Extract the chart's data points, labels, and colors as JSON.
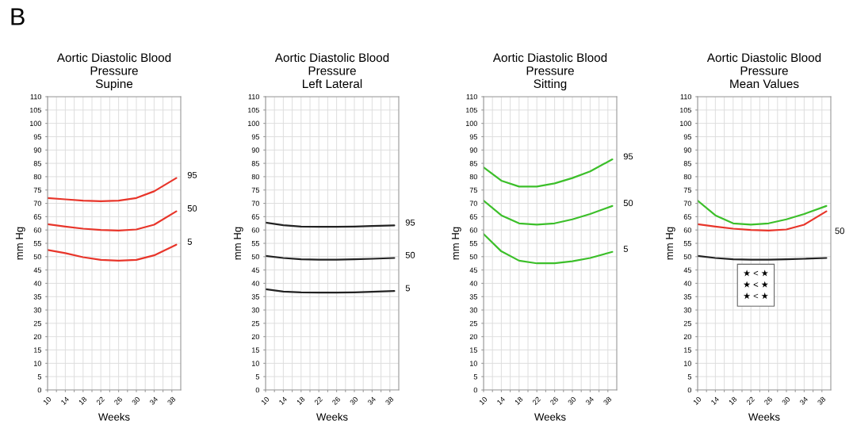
{
  "chart_data": [
    {
      "type": "line",
      "title": "Aortic Diastolic Blood\nPressure\nSupine",
      "xlabel": "Weeks",
      "ylabel": "mm Hg",
      "annotations": [
        "B"
      ],
      "x": [
        10,
        14,
        18,
        22,
        26,
        30,
        34,
        39
      ],
      "series": [
        {
          "name": "95",
          "color": "#e8352a",
          "values": [
            72,
            71.5,
            71,
            70.8,
            71,
            72,
            74.5,
            79.5
          ]
        },
        {
          "name": "50",
          "color": "#e8352a",
          "values": [
            62.2,
            61.3,
            60.5,
            60,
            59.8,
            60.2,
            62,
            67
          ]
        },
        {
          "name": "5",
          "color": "#e8352a",
          "values": [
            52.5,
            51.3,
            49.8,
            48.8,
            48.5,
            48.8,
            50.5,
            54.5
          ]
        }
      ],
      "xlim": [
        10,
        40
      ],
      "ylim": [
        0,
        110
      ],
      "xticks": [
        10,
        {
          "value": 12,
          "label": null
        },
        14,
        {
          "value": 16,
          "label": null
        },
        18,
        {
          "value": 20,
          "label": null
        },
        22,
        {
          "value": 24,
          "label": null
        },
        26,
        {
          "value": 28,
          "label": null
        },
        30,
        {
          "value": 32,
          "label": null
        },
        34,
        {
          "value": 36,
          "label": null
        },
        38
      ],
      "yticks": [
        0,
        5,
        10,
        15,
        20,
        25,
        30,
        35,
        40,
        45,
        50,
        55,
        60,
        65,
        70,
        75,
        80,
        85,
        90,
        95,
        100,
        105,
        110
      ],
      "grid": true,
      "legend": false,
      "marker": "none",
      "line_style": "solid"
    },
    {
      "type": "line",
      "title": "Aortic Diastolic Blood\nPressure\nLeft Lateral",
      "xlabel": "Weeks",
      "ylabel": "mm Hg",
      "x": [
        10,
        14,
        18,
        22,
        26,
        30,
        34,
        39
      ],
      "series": [
        {
          "name": "95",
          "color": "#222222",
          "values": [
            62.8,
            61.8,
            61.3,
            61.2,
            61.2,
            61.3,
            61.5,
            61.7
          ]
        },
        {
          "name": "50",
          "color": "#222222",
          "values": [
            50.3,
            49.5,
            49,
            48.9,
            48.9,
            49,
            49.2,
            49.5
          ]
        },
        {
          "name": "5",
          "color": "#222222",
          "values": [
            37.8,
            36.9,
            36.6,
            36.5,
            36.5,
            36.6,
            36.8,
            37.1
          ]
        }
      ],
      "xlim": [
        10,
        40
      ],
      "ylim": [
        0,
        110
      ],
      "xticks": [
        10,
        {
          "value": 12,
          "label": null
        },
        14,
        {
          "value": 16,
          "label": null
        },
        18,
        {
          "value": 20,
          "label": null
        },
        22,
        {
          "value": 24,
          "label": null
        },
        26,
        {
          "value": 28,
          "label": null
        },
        30,
        {
          "value": 32,
          "label": null
        },
        34,
        {
          "value": 36,
          "label": null
        },
        38
      ],
      "yticks": [
        0,
        5,
        10,
        15,
        20,
        25,
        30,
        35,
        40,
        45,
        50,
        55,
        60,
        65,
        70,
        75,
        80,
        85,
        90,
        95,
        100,
        105,
        110
      ],
      "grid": true,
      "legend": false,
      "marker": "none",
      "line_style": "solid"
    },
    {
      "type": "line",
      "title": "Aortic Diastolic Blood\nPressure\nSitting",
      "xlabel": "Weeks",
      "ylabel": "mm Hg",
      "x": [
        10,
        14,
        18,
        22,
        26,
        30,
        34,
        39
      ],
      "series": [
        {
          "name": "95",
          "color": "#3cbf2a",
          "values": [
            83.5,
            78.5,
            76.3,
            76.3,
            77.5,
            79.5,
            82,
            86.5
          ]
        },
        {
          "name": "50",
          "color": "#3cbf2a",
          "values": [
            71,
            65.5,
            62.5,
            62,
            62.5,
            64,
            66,
            69
          ]
        },
        {
          "name": "5",
          "color": "#3cbf2a",
          "values": [
            58.5,
            52,
            48.5,
            47.5,
            47.5,
            48.3,
            49.5,
            51.8
          ]
        }
      ],
      "xlim": [
        10,
        40
      ],
      "ylim": [
        0,
        110
      ],
      "xticks": [
        10,
        {
          "value": 12,
          "label": null
        },
        14,
        {
          "value": 16,
          "label": null
        },
        18,
        {
          "value": 20,
          "label": null
        },
        22,
        {
          "value": 24,
          "label": null
        },
        26,
        {
          "value": 28,
          "label": null
        },
        30,
        {
          "value": 32,
          "label": null
        },
        34,
        {
          "value": 36,
          "label": null
        },
        38
      ],
      "yticks": [
        0,
        5,
        10,
        15,
        20,
        25,
        30,
        35,
        40,
        45,
        50,
        55,
        60,
        65,
        70,
        75,
        80,
        85,
        90,
        95,
        100,
        105,
        110
      ],
      "grid": true,
      "legend": false,
      "marker": "none",
      "line_style": "solid"
    },
    {
      "type": "line",
      "title": "Aortic Diastolic Blood\nPressure\nMean Values",
      "xlabel": "Weeks",
      "ylabel": "mm Hg",
      "annotations": [
        "★ < ★\n★ < ★\n★ < ★",
        "50"
      ],
      "x": [
        10,
        14,
        18,
        22,
        26,
        30,
        34,
        39
      ],
      "series": [
        {
          "color": "#3cbf2a",
          "values": [
            71,
            65.5,
            62.5,
            62,
            62.5,
            64,
            66,
            69
          ]
        },
        {
          "color": "#e8352a",
          "values": [
            62.2,
            61.3,
            60.5,
            60,
            59.8,
            60.2,
            62,
            67
          ]
        },
        {
          "color": "#222222",
          "values": [
            50.3,
            49.5,
            49,
            48.9,
            48.9,
            49,
            49.2,
            49.5
          ]
        }
      ],
      "xlim": [
        10,
        40
      ],
      "ylim": [
        0,
        110
      ],
      "xticks": [
        10,
        {
          "value": 12,
          "label": null
        },
        14,
        {
          "value": 16,
          "label": null
        },
        18,
        {
          "value": 20,
          "label": null
        },
        22,
        {
          "value": 24,
          "label": null
        },
        26,
        {
          "value": 28,
          "label": null
        },
        30,
        {
          "value": 32,
          "label": null
        },
        34,
        {
          "value": 36,
          "label": null
        },
        38
      ],
      "yticks": [
        0,
        5,
        10,
        15,
        20,
        25,
        30,
        35,
        40,
        45,
        50,
        55,
        60,
        65,
        70,
        75,
        80,
        85,
        90,
        95,
        100,
        105,
        110
      ],
      "grid": true,
      "legend": false,
      "marker": "none",
      "line_style": "solid"
    }
  ]
}
